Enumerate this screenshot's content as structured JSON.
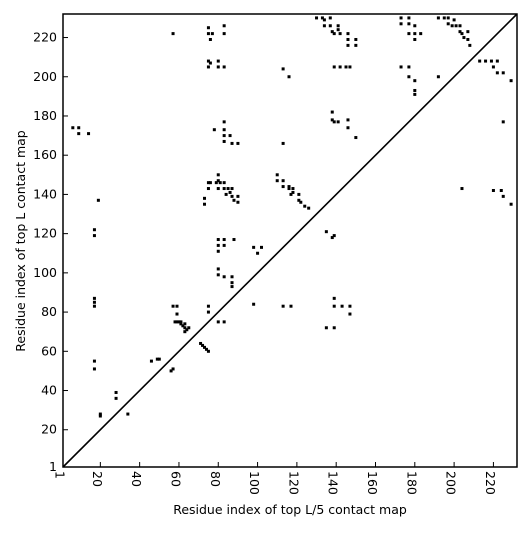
{
  "chart_data": {
    "type": "scatter",
    "xlabel": "Residue index of top L/5 contact map",
    "ylabel": "Residue index of top L contact map",
    "xlim": [
      1,
      232
    ],
    "ylim": [
      1,
      232
    ],
    "xticks": [
      1,
      20,
      40,
      60,
      80,
      100,
      120,
      140,
      160,
      180,
      200,
      220
    ],
    "yticks": [
      1,
      20,
      40,
      60,
      80,
      100,
      120,
      140,
      160,
      180,
      200,
      220
    ],
    "diagonal": {
      "x": [
        1,
        232
      ],
      "y": [
        1,
        232
      ],
      "color": "#000000"
    },
    "series": [
      {
        "color": "#000000",
        "x": [
          6,
          9,
          9,
          14,
          19,
          17,
          17,
          17,
          17,
          17,
          17,
          17,
          20,
          20,
          28,
          28,
          34,
          46,
          49,
          50,
          56,
          57,
          57,
          59,
          59,
          58,
          59,
          60,
          61,
          61,
          62,
          63,
          63,
          64,
          65,
          63,
          71,
          72,
          73,
          74,
          75,
          75,
          75,
          80,
          83,
          80,
          80,
          83,
          87,
          87,
          87,
          80,
          80,
          80,
          83,
          83,
          88,
          98,
          100,
          102,
          98,
          113,
          117,
          135,
          139,
          139,
          139,
          143,
          147,
          147,
          135,
          138,
          139,
          73,
          73,
          75,
          76,
          75,
          78,
          80,
          79,
          80,
          81,
          80,
          83,
          83,
          84,
          85,
          86,
          87,
          87,
          90,
          90,
          88,
          83,
          83,
          83,
          83,
          86,
          87,
          90,
          113,
          110,
          110,
          113,
          113,
          116,
          117,
          118,
          121,
          121,
          122,
          124,
          126,
          116,
          118,
          57,
          75,
          75,
          76,
          77,
          75,
          75,
          76,
          80,
          80,
          83,
          83,
          83,
          113,
          116,
          130,
          133,
          134,
          134,
          137,
          137,
          138,
          139,
          141,
          141,
          142,
          146,
          146,
          146,
          150,
          150,
          139,
          142,
          145,
          147,
          138,
          138,
          139,
          141,
          146,
          146,
          150,
          173,
          173,
          177,
          177,
          180,
          180,
          180,
          183,
          177,
          173,
          177,
          177,
          180,
          180,
          180,
          192,
          192,
          195,
          197,
          197,
          199,
          200,
          201,
          203,
          203,
          204,
          207,
          207,
          208,
          205,
          213,
          216,
          219,
          220,
          222,
          222,
          225,
          229,
          225,
          220,
          224,
          225,
          229,
          204
        ],
        "y": [
          174,
          174,
          171,
          171,
          137,
          122,
          119,
          87,
          85,
          83,
          55,
          51,
          28,
          27,
          39,
          36,
          28,
          55,
          56,
          56,
          50,
          51,
          83,
          83,
          79,
          75,
          75,
          75,
          75,
          74,
          73,
          72,
          74,
          71,
          72,
          70,
          64,
          63,
          62,
          61,
          60,
          83,
          80,
          75,
          75,
          102,
          99,
          98,
          98,
          95,
          93,
          117,
          114,
          111,
          117,
          114,
          117,
          113,
          110,
          113,
          84,
          83,
          83,
          72,
          72,
          87,
          83,
          83,
          83,
          79,
          121,
          118,
          119,
          138,
          135,
          146,
          146,
          143,
          173,
          150,
          146,
          147,
          146,
          143,
          146,
          143,
          140,
          143,
          141,
          143,
          139,
          139,
          136,
          137,
          177,
          173,
          170,
          167,
          170,
          166,
          166,
          166,
          150,
          147,
          147,
          144,
          144,
          140,
          141,
          140,
          137,
          136,
          134,
          133,
          143,
          143,
          222,
          225,
          222,
          219,
          222,
          208,
          205,
          207,
          208,
          205,
          226,
          222,
          205,
          204,
          200,
          230,
          230,
          229,
          226,
          230,
          226,
          223,
          222,
          226,
          224,
          222,
          222,
          219,
          216,
          219,
          216,
          205,
          205,
          205,
          205,
          182,
          178,
          177,
          177,
          178,
          174,
          169,
          230,
          227,
          230,
          227,
          226,
          222,
          219,
          222,
          222,
          205,
          205,
          200,
          198,
          193,
          191,
          200,
          230,
          230,
          230,
          227,
          226,
          229,
          226,
          226,
          223,
          222,
          223,
          219,
          216,
          220,
          208,
          208,
          208,
          205,
          208,
          202,
          202,
          198,
          177,
          142,
          142,
          139,
          135,
          143
        ]
      }
    ]
  }
}
